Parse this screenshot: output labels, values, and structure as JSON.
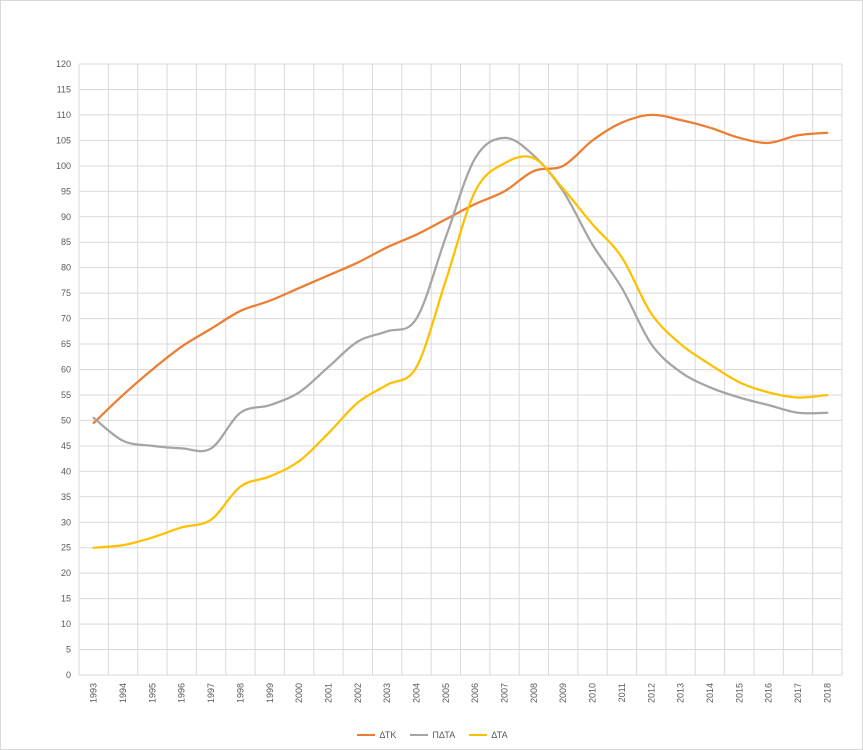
{
  "chart_data": {
    "type": "line",
    "title": "",
    "xlabel": "",
    "ylabel": "",
    "ylim": [
      0,
      120
    ],
    "ytick_step": 5,
    "grid": true,
    "smooth": true,
    "legend_position": "bottom",
    "x": [
      "1993",
      "1994",
      "1995",
      "1996",
      "1997",
      "1998",
      "1999",
      "2000",
      "2001",
      "2002",
      "2003",
      "2004",
      "2005",
      "2006",
      "2007",
      "2008",
      "2009",
      "2010",
      "2011",
      "2012",
      "2013",
      "2014",
      "2015",
      "2016",
      "2017",
      "2018"
    ],
    "series": [
      {
        "name": "ΔΤΚ",
        "color": "#ED7D31",
        "values": [
          49.5,
          55,
          60,
          64.5,
          68,
          71.5,
          73.5,
          76,
          78.5,
          81,
          84,
          86.5,
          89.5,
          92.5,
          95,
          99,
          100,
          105,
          108.5,
          110,
          109,
          107.5,
          105.5,
          104.5,
          106,
          106.5
        ]
      },
      {
        "name": "ΠΔΤΑ",
        "color": "#A5A5A5",
        "values": [
          50.5,
          46,
          45,
          44.5,
          44.5,
          51.5,
          53,
          55.5,
          60.5,
          65.5,
          67.5,
          70,
          86,
          101.5,
          105.5,
          102,
          95,
          84.5,
          76,
          65,
          59.5,
          56.5,
          54.5,
          53,
          51.5,
          51.5
        ]
      },
      {
        "name": "ΔΤΑ",
        "color": "#FFC000",
        "values": [
          25,
          25.5,
          27,
          29,
          30.5,
          37,
          39,
          42,
          47.5,
          53.5,
          57,
          60.5,
          77.5,
          95,
          100.5,
          101.5,
          95.5,
          88.5,
          82,
          71,
          65,
          61,
          57.5,
          55.5,
          54.5,
          55
        ]
      }
    ]
  }
}
